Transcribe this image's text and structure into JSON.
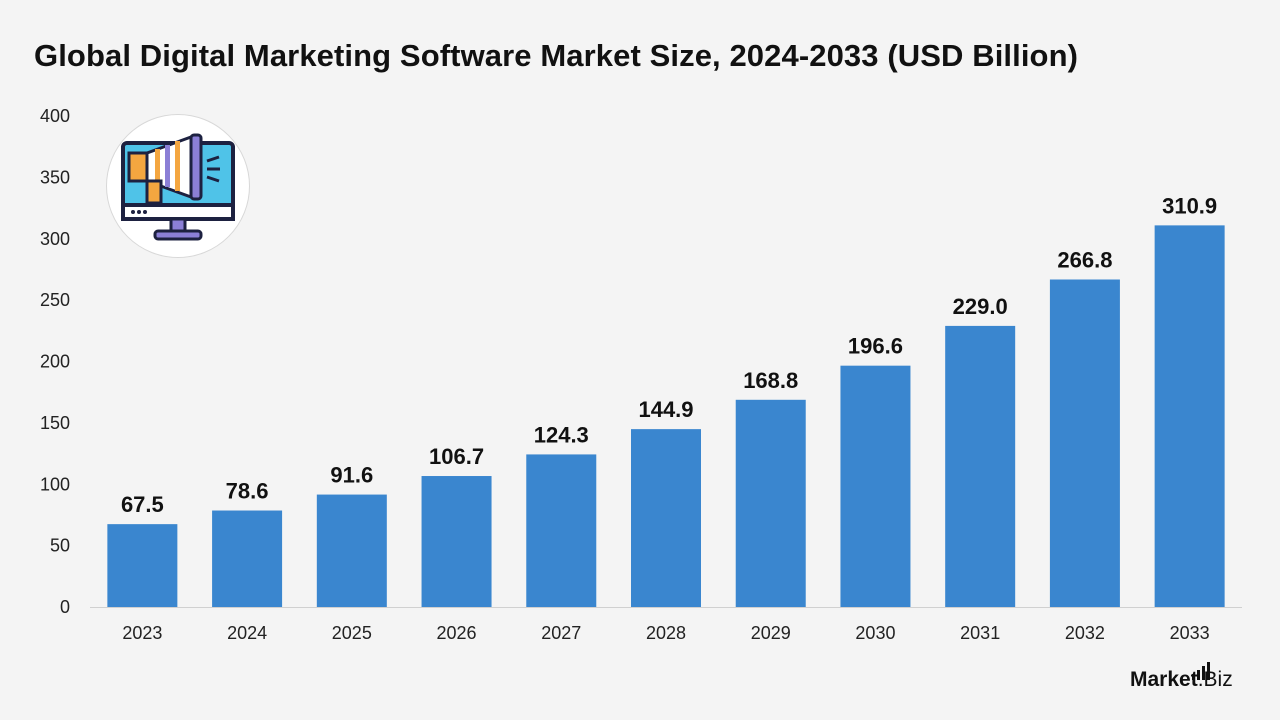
{
  "chart_data": {
    "type": "bar",
    "title": "Global Digital Marketing Software Market Size, 2024-2033 (USD Billion)",
    "xlabel": "",
    "ylabel": "",
    "categories": [
      "2023",
      "2024",
      "2025",
      "2026",
      "2027",
      "2028",
      "2029",
      "2030",
      "2031",
      "2032",
      "2033"
    ],
    "values": [
      67.5,
      78.6,
      91.6,
      106.7,
      124.3,
      144.9,
      168.8,
      196.6,
      229.0,
      266.8,
      310.9
    ],
    "value_labels": [
      "67.5",
      "78.6",
      "91.6",
      "106.7",
      "124.3",
      "144.9",
      "168.8",
      "196.6",
      "229.0",
      "266.8",
      "310.9"
    ],
    "ylim": [
      0,
      400
    ],
    "yticks": [
      "0",
      "50",
      "100",
      "150",
      "200",
      "250",
      "300",
      "350",
      "400"
    ],
    "grid": false,
    "bar_color": "#3a86cf"
  },
  "logo": {
    "brand": "Market",
    "suffix": ".Biz"
  },
  "icon": {
    "name": "megaphone-monitor-icon"
  }
}
